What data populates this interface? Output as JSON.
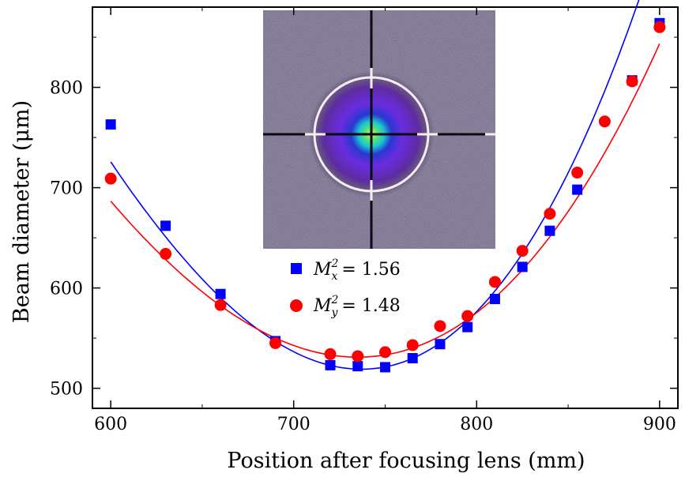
{
  "chart_data": {
    "type": "scatter",
    "title": "",
    "xlabel": "Position after focusing lens (mm)",
    "ylabel": "Beam diameter (μm)",
    "xlim": [
      590,
      910
    ],
    "ylim": [
      480,
      880
    ],
    "xticks": [
      600,
      700,
      800,
      900
    ],
    "yticks": [
      500,
      600,
      700,
      800
    ],
    "grid": false,
    "legend_position": "center",
    "series": [
      {
        "name": "M_x^2 = 1.56",
        "legend_symbol": "M",
        "legend_sub": "x",
        "legend_sup": "2",
        "legend_value": "= 1.56",
        "color": "#0000ff",
        "marker": "square",
        "x": [
          600,
          630,
          660,
          690,
          720,
          735,
          750,
          765,
          780,
          795,
          810,
          825,
          840,
          855,
          885,
          900
        ],
        "y": [
          763,
          662,
          594,
          547,
          523,
          522,
          521,
          530,
          544,
          561,
          589,
          621,
          657,
          698,
          807,
          864
        ],
        "fit": {
          "x0": 737,
          "y0": 519,
          "a": 0.01338,
          "b": 1.73e-05
        }
      },
      {
        "name": "M_y^2 = 1.48",
        "legend_symbol": "M",
        "legend_sub": "y",
        "legend_sup": "2",
        "legend_value": "= 1.48",
        "color": "#ff0000",
        "marker": "circle",
        "x": [
          600,
          630,
          660,
          690,
          720,
          735,
          750,
          765,
          780,
          795,
          810,
          825,
          840,
          855,
          870,
          885,
          900
        ],
        "y": [
          709,
          634,
          583,
          545,
          534,
          532,
          536,
          543,
          562,
          572,
          606,
          637,
          674,
          715,
          766,
          806,
          860
        ],
        "fit": {
          "x0": 735,
          "y0": 531,
          "a": 0.00986,
          "b": 9.81e-06
        }
      }
    ],
    "inset": {
      "description": "beam profile image",
      "colors": {
        "background": "#3a3046",
        "ring": "#f4eef0",
        "crosshair": "#0a0a12",
        "outer": "#5b2c8c",
        "mid": "#7a2ed6",
        "inner": "#2e2cc4",
        "core": "#12c0c8",
        "hot": "#9be03a"
      }
    }
  }
}
